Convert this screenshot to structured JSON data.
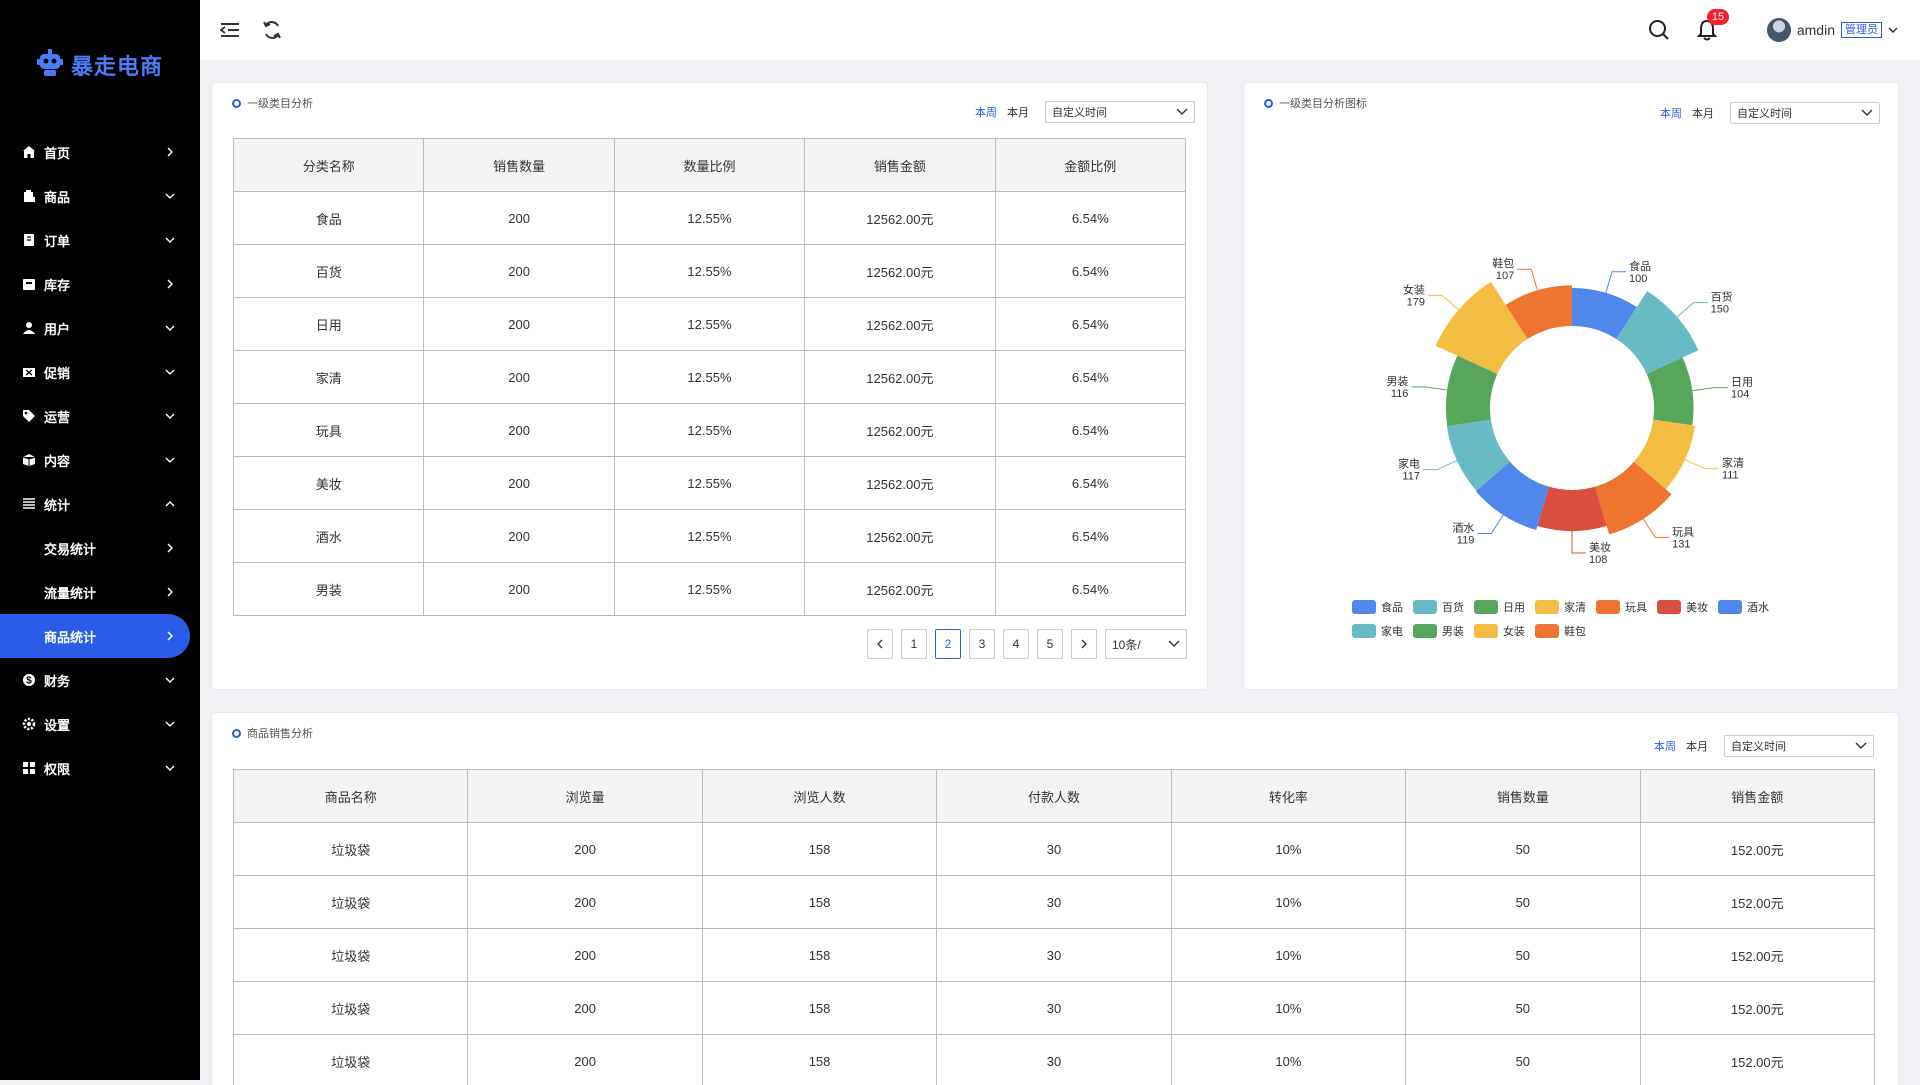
{
  "app": {
    "brand": "暴走电商"
  },
  "sidebar": {
    "items": [
      {
        "label": "首页",
        "icon": "home-icon",
        "arrow": "right"
      },
      {
        "label": "商品",
        "icon": "product-icon",
        "arrow": "down"
      },
      {
        "label": "订单",
        "icon": "order-icon",
        "arrow": "down"
      },
      {
        "label": "库存",
        "icon": "inventory-icon",
        "arrow": "right"
      },
      {
        "label": "用户",
        "icon": "user-icon",
        "arrow": "down"
      },
      {
        "label": "促销",
        "icon": "promotion-icon",
        "arrow": "down"
      },
      {
        "label": "运营",
        "icon": "tag-icon",
        "arrow": "down"
      },
      {
        "label": "内容",
        "icon": "content-icon",
        "arrow": "down"
      },
      {
        "label": "统计",
        "icon": "stats-icon",
        "arrow": "up"
      },
      {
        "label": "交易统计",
        "sub": true,
        "arrow": "right"
      },
      {
        "label": "流量统计",
        "sub": true,
        "arrow": "right"
      },
      {
        "label": "商品统计",
        "sub": true,
        "arrow": "right",
        "active": true
      },
      {
        "label": "财务",
        "icon": "finance-icon",
        "arrow": "down"
      },
      {
        "label": "设置",
        "icon": "settings-icon",
        "arrow": "down"
      },
      {
        "label": "权限",
        "icon": "permission-icon",
        "arrow": "down"
      }
    ]
  },
  "header": {
    "notifications": "15",
    "username": "amdin",
    "role": "管理员"
  },
  "category_table": {
    "title": "一级类目分析",
    "filter": {
      "week": "本周",
      "month": "本月",
      "custom": "自定义时间"
    },
    "columns": [
      "分类名称",
      "销售数量",
      "数量比例",
      "销售金额",
      "金额比例"
    ],
    "rows": [
      [
        "食品",
        "200",
        "12.55%",
        "12562.00元",
        "6.54%"
      ],
      [
        "百货",
        "200",
        "12.55%",
        "12562.00元",
        "6.54%"
      ],
      [
        "日用",
        "200",
        "12.55%",
        "12562.00元",
        "6.54%"
      ],
      [
        "家清",
        "200",
        "12.55%",
        "12562.00元",
        "6.54%"
      ],
      [
        "玩具",
        "200",
        "12.55%",
        "12562.00元",
        "6.54%"
      ],
      [
        "美妆",
        "200",
        "12.55%",
        "12562.00元",
        "6.54%"
      ],
      [
        "酒水",
        "200",
        "12.55%",
        "12562.00元",
        "6.54%"
      ],
      [
        "男装",
        "200",
        "12.55%",
        "12562.00元",
        "6.54%"
      ]
    ],
    "pagination": {
      "pages": [
        "1",
        "2",
        "3",
        "4",
        "5"
      ],
      "current": "2",
      "page_size": "10条/"
    }
  },
  "category_chart": {
    "title": "一级类目分析图标",
    "filter": {
      "week": "本周",
      "month": "本月",
      "custom": "自定义时间"
    }
  },
  "chart_data": {
    "type": "pie",
    "variant": "rose-donut",
    "categories": [
      "食品",
      "百货",
      "日用",
      "家清",
      "玩具",
      "美妆",
      "酒水",
      "家电",
      "男装",
      "女装",
      "鞋包"
    ],
    "values": [
      100,
      150,
      104,
      111,
      131,
      108,
      119,
      117,
      116,
      179,
      107
    ],
    "colors": [
      "#5087ec",
      "#68bbc4",
      "#58a55c",
      "#f2bd42",
      "#ee752f",
      "#d95040",
      "#5087ec",
      "#68bbc4",
      "#58a55c",
      "#f2bd42",
      "#ee752f"
    ],
    "legend_placement": "bottom"
  },
  "sales_table": {
    "title": "商品销售分析",
    "filter": {
      "week": "本周",
      "month": "本月",
      "custom": "自定义时间"
    },
    "columns": [
      "商品名称",
      "浏览量",
      "浏览人数",
      "付款人数",
      "转化率",
      "销售数量",
      "销售金额"
    ],
    "rows": [
      [
        "垃圾袋",
        "200",
        "158",
        "30",
        "10%",
        "50",
        "152.00元"
      ],
      [
        "垃圾袋",
        "200",
        "158",
        "30",
        "10%",
        "50",
        "152.00元"
      ],
      [
        "垃圾袋",
        "200",
        "158",
        "30",
        "10%",
        "50",
        "152.00元"
      ],
      [
        "垃圾袋",
        "200",
        "158",
        "30",
        "10%",
        "50",
        "152.00元"
      ],
      [
        "垃圾袋",
        "200",
        "158",
        "30",
        "10%",
        "50",
        "152.00元"
      ]
    ]
  }
}
